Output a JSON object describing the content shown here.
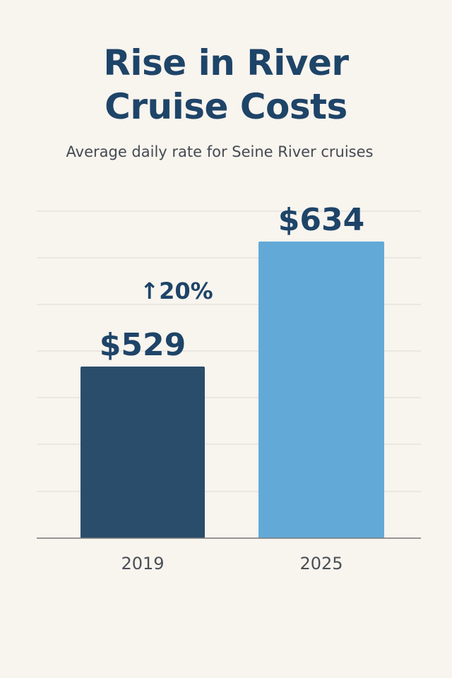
{
  "title_lines": [
    "Rise in River",
    "Cruise Costs"
  ],
  "subtitle": "Average daily rate for Seine River cruises",
  "colors": {
    "background": "#f8f4ee",
    "title": "#1e4468",
    "bar_2019": "#2a4d6b",
    "bar_2025": "#63a9d8",
    "grid": "#dddad5",
    "axis": "#777777"
  },
  "chart_data": {
    "type": "bar",
    "categories": [
      "2019",
      "2025"
    ],
    "values": [
      529,
      634
    ],
    "value_labels": [
      "$529",
      "$634"
    ],
    "annotation": "↑20%",
    "grid": true,
    "legend": "none"
  }
}
